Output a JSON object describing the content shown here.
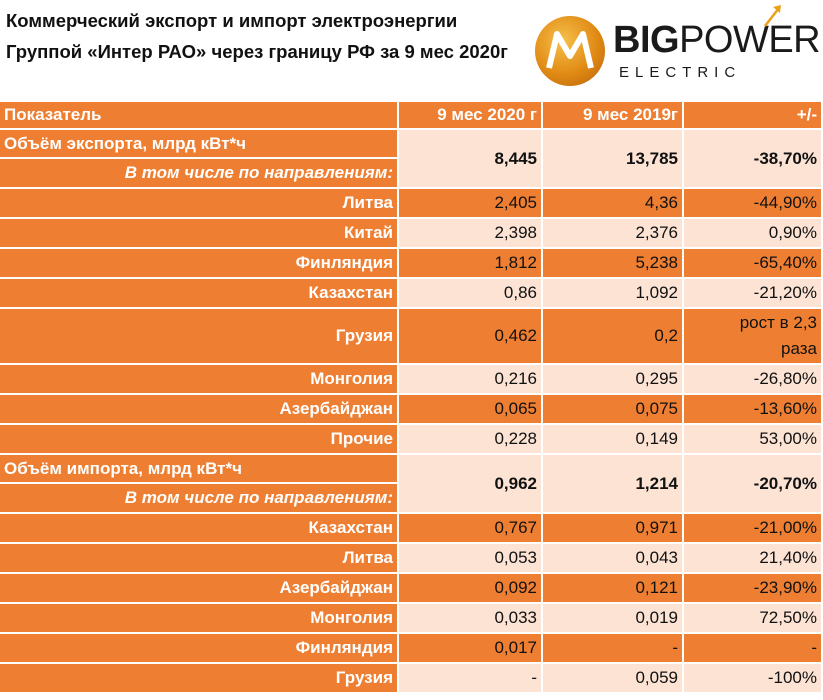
{
  "title": "Коммерческий экспорт и импорт электроэнергии Группой «Интер РАО» через границу РФ за 9 мес 2020г",
  "logo": {
    "big_bold": "BIG",
    "big_light": "POWER",
    "sub": "ELECTRIC"
  },
  "colors": {
    "header": "#ee7f32",
    "light_row": "#fce3d4"
  },
  "table": {
    "headers": [
      "Показатель",
      "9 мес 2020 г",
      "9 мес 2019г",
      "+/-"
    ],
    "export": {
      "title": "Объём экспорта, млрд кВт*ч",
      "subtitle": "В том числе по направлениям:",
      "v2020": "8,445",
      "v2019": "13,785",
      "delta": "-38,70%",
      "rows": [
        {
          "name": "Литва",
          "v2020": "2,405",
          "v2019": "4,36",
          "delta": "-44,90%"
        },
        {
          "name": "Китай",
          "v2020": "2,398",
          "v2019": "2,376",
          "delta": "0,90%"
        },
        {
          "name": "Финляндия",
          "v2020": "1,812",
          "v2019": "5,238",
          "delta": "-65,40%"
        },
        {
          "name": "Казахстан",
          "v2020": "0,86",
          "v2019": "1,092",
          "delta": "-21,20%"
        },
        {
          "name": "Грузия",
          "v2020": "0,462",
          "v2019": "0,2",
          "delta_line1": "рост в 2,3",
          "delta_line2": "раза"
        },
        {
          "name": "Монголия",
          "v2020": "0,216",
          "v2019": "0,295",
          "delta": "-26,80%"
        },
        {
          "name": "Азербайджан",
          "v2020": "0,065",
          "v2019": "0,075",
          "delta": "-13,60%"
        },
        {
          "name": "Прочие",
          "v2020": "0,228",
          "v2019": "0,149",
          "delta": "53,00%"
        }
      ]
    },
    "import": {
      "title": "Объём импорта, млрд кВт*ч",
      "subtitle": "В том числе по направлениям:",
      "v2020": "0,962",
      "v2019": "1,214",
      "delta": "-20,70%",
      "rows": [
        {
          "name": "Казахстан",
          "v2020": "0,767",
          "v2019": "0,971",
          "delta": "-21,00%"
        },
        {
          "name": "Литва",
          "v2020": "0,053",
          "v2019": "0,043",
          "delta": "21,40%"
        },
        {
          "name": "Азербайджан",
          "v2020": "0,092",
          "v2019": "0,121",
          "delta": "-23,90%"
        },
        {
          "name": "Монголия",
          "v2020": "0,033",
          "v2019": "0,019",
          "delta": "72,50%"
        },
        {
          "name": "Финляндия",
          "v2020": "0,017",
          "v2019": "-",
          "delta": "-"
        },
        {
          "name": "Грузия",
          "v2020": "-",
          "v2019": "0,059",
          "delta": "-100%"
        }
      ]
    }
  }
}
